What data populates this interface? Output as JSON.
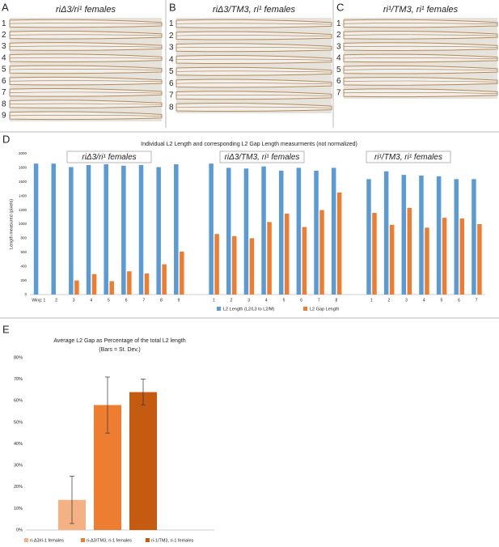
{
  "panels": [
    {
      "label": "A",
      "title": "riΔ3/ri¹ females",
      "wings": [
        "1",
        "2",
        "3",
        "4",
        "5",
        "6",
        "7",
        "8",
        "9"
      ]
    },
    {
      "label": "B",
      "title": "riΔ3/TM3, ri¹  females",
      "wings": [
        "1",
        "2",
        "3",
        "4",
        "5",
        "6",
        "7",
        "8"
      ]
    },
    {
      "label": "C",
      "title": "ri¹/TM3, ri¹ females",
      "wings": [
        "1",
        "2",
        "3",
        "4",
        "5",
        "6",
        "7"
      ]
    }
  ],
  "chart_data": [
    {
      "type": "bar",
      "panel": "D",
      "title": "Individual L2 Length and corresponding L2 Gap Length measurments (not normalized)",
      "y_label": "Length measured (pixels)",
      "categories": [
        "Wing: 1",
        "2",
        "3",
        "4",
        "5",
        "6",
        "7",
        "8",
        "9",
        null,
        "1",
        "2",
        "3",
        "4",
        "5",
        "6",
        "7",
        "8",
        null,
        "1",
        "2",
        "3",
        "4",
        "5",
        "6",
        "7"
      ],
      "series": [
        {
          "name": "L2 Length (L2/L3 to L2/M)",
          "color": "#5b9bd5",
          "values": [
            1860,
            1860,
            1810,
            1840,
            1850,
            1830,
            1840,
            1810,
            1850,
            null,
            1860,
            1800,
            1790,
            1820,
            1760,
            1800,
            1760,
            1800,
            null,
            1640,
            1750,
            1700,
            1690,
            1680,
            1640,
            1640
          ]
        },
        {
          "name": "L2 Gap Length",
          "color": "#ed7d31",
          "values": [
            0,
            0,
            200,
            290,
            190,
            330,
            300,
            430,
            610,
            null,
            860,
            830,
            800,
            1030,
            1150,
            960,
            1200,
            1450,
            null,
            1160,
            990,
            1230,
            950,
            1090,
            1080,
            1000
          ]
        }
      ],
      "annotations": [
        "riΔ3/ri¹ females",
        "riΔ3/TM3, ri¹  females",
        "ri¹/TM3, ri¹ females"
      ],
      "ylim": [
        0,
        2000
      ],
      "yticks": [
        0,
        200,
        400,
        600,
        800,
        1000,
        1200,
        1400,
        1600,
        1800,
        2000
      ],
      "grid": false
    },
    {
      "type": "bar",
      "panel": "E",
      "title": "Average L2 Gap as Percentage of the total L2 length",
      "subtitle": "(Bars = St. Dev.)",
      "categories": [
        "ri-Δ3/ri-1 females",
        "ri-Δ3/TM3, ri-1 females",
        "ri-1/TM3, ri-1 females"
      ],
      "values": [
        14,
        58,
        64
      ],
      "errors": [
        11,
        13,
        6
      ],
      "colors": [
        "#f4b183",
        "#ed7d31",
        "#c55a11"
      ],
      "ylim": [
        0,
        80
      ],
      "yticks": [
        {
          "value": 0,
          "label": "0%"
        },
        {
          "value": 10,
          "label": "10%"
        },
        {
          "value": 20,
          "label": "20%"
        },
        {
          "value": 30,
          "label": "30%"
        },
        {
          "value": 40,
          "label": "40%"
        },
        {
          "value": 50,
          "label": "50%"
        },
        {
          "value": 60,
          "label": "60%"
        },
        {
          "value": 70,
          "label": "70%"
        },
        {
          "value": 80,
          "label": "80%"
        }
      ],
      "grid": false
    }
  ]
}
